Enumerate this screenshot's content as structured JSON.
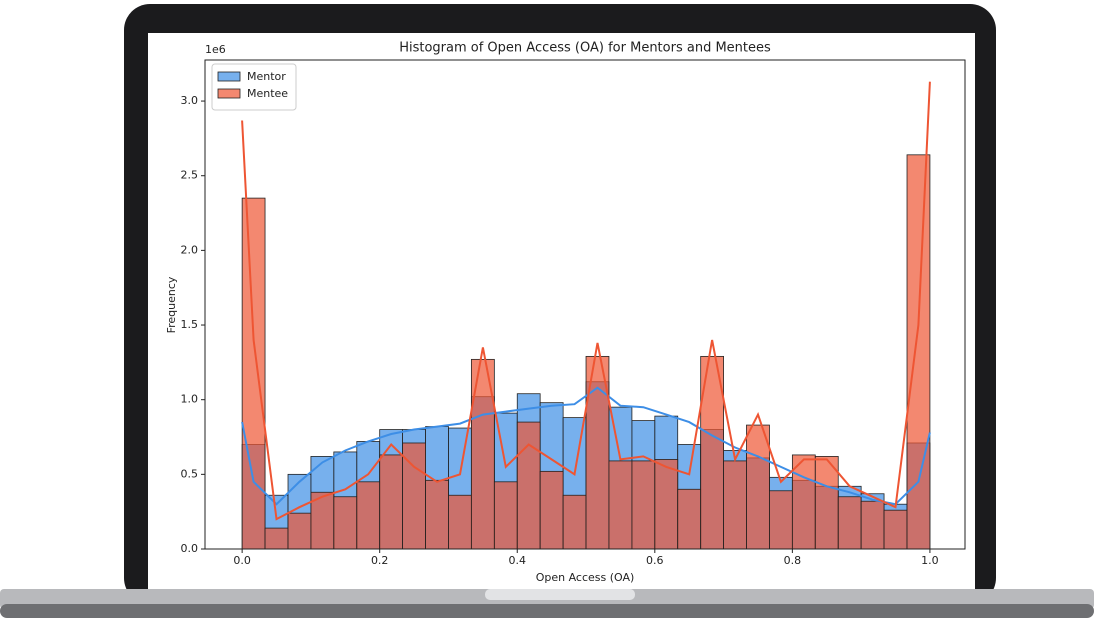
{
  "chart_data": {
    "type": "histogram",
    "title": "Histogram of Open Access (OA) for Mentors and Mentees",
    "xlabel": "Open Access (OA)",
    "ylabel": "Frequency",
    "y_offset_label": "1e6",
    "bins": [
      0,
      0.0333,
      0.0667,
      0.1,
      0.1333,
      0.1667,
      0.2,
      0.2333,
      0.2667,
      0.3,
      0.3333,
      0.3667,
      0.4,
      0.4333,
      0.4667,
      0.5,
      0.5333,
      0.5667,
      0.6,
      0.6333,
      0.6667,
      0.7,
      0.7333,
      0.7667,
      0.8,
      0.8333,
      0.8667,
      0.9,
      0.9333,
      0.9667,
      1
    ],
    "kde_x": [
      0,
      0.0167,
      0.05,
      0.0833,
      0.1167,
      0.15,
      0.1833,
      0.2167,
      0.25,
      0.2833,
      0.3167,
      0.35,
      0.3833,
      0.4167,
      0.45,
      0.4833,
      0.5167,
      0.55,
      0.5833,
      0.6167,
      0.65,
      0.6833,
      0.7167,
      0.75,
      0.7833,
      0.8167,
      0.85,
      0.8833,
      0.9167,
      0.95,
      0.9833,
      1
    ],
    "series": [
      {
        "name": "Mentor",
        "color": "#3d8ee6",
        "values": [
          0.7,
          0.36,
          0.5,
          0.62,
          0.65,
          0.72,
          0.8,
          0.8,
          0.82,
          0.81,
          1.02,
          0.91,
          1.04,
          0.98,
          0.88,
          1.12,
          0.95,
          0.86,
          0.89,
          0.7,
          0.8,
          0.66,
          0.61,
          0.48,
          0.46,
          0.42,
          0.42,
          0.37,
          0.3,
          0.71
        ],
        "kde": [
          0.85,
          0.45,
          0.3,
          0.45,
          0.58,
          0.66,
          0.72,
          0.77,
          0.8,
          0.82,
          0.84,
          0.9,
          0.92,
          0.94,
          0.96,
          0.97,
          1.08,
          0.96,
          0.95,
          0.9,
          0.85,
          0.76,
          0.68,
          0.62,
          0.55,
          0.48,
          0.42,
          0.38,
          0.33,
          0.3,
          0.45,
          0.78
        ]
      },
      {
        "name": "Mentee",
        "color": "#ee5533",
        "values": [
          2.35,
          0.14,
          0.24,
          0.38,
          0.35,
          0.45,
          0.63,
          0.71,
          0.46,
          0.36,
          1.27,
          0.45,
          0.85,
          0.52,
          0.36,
          1.29,
          0.59,
          0.59,
          0.6,
          0.4,
          1.29,
          0.59,
          0.83,
          0.39,
          0.63,
          0.62,
          0.35,
          0.32,
          0.26,
          2.64
        ],
        "kde": [
          2.87,
          1.4,
          0.2,
          0.28,
          0.35,
          0.4,
          0.5,
          0.7,
          0.55,
          0.45,
          0.5,
          1.35,
          0.55,
          0.7,
          0.6,
          0.5,
          1.38,
          0.6,
          0.62,
          0.55,
          0.5,
          1.4,
          0.6,
          0.9,
          0.45,
          0.6,
          0.6,
          0.42,
          0.35,
          0.28,
          1.5,
          3.13
        ]
      }
    ],
    "xlim": [
      -0.054,
      1.051
    ],
    "xticks": [
      {
        "value": 0,
        "label": "0.0"
      },
      0.2,
      0.4,
      0.6,
      0.8,
      {
        "value": 1,
        "label": "1.0"
      }
    ],
    "ylim": [
      0,
      3.275
    ],
    "yticks": [
      {
        "value": 0,
        "label": "0.0"
      },
      0.5,
      {
        "value": 1,
        "label": "1.0"
      },
      1.5,
      {
        "value": 2,
        "label": "2.0"
      },
      2.5,
      {
        "value": 3,
        "label": "3.0"
      }
    ],
    "legend": "upper left",
    "bar_opacity": 0.7
  }
}
